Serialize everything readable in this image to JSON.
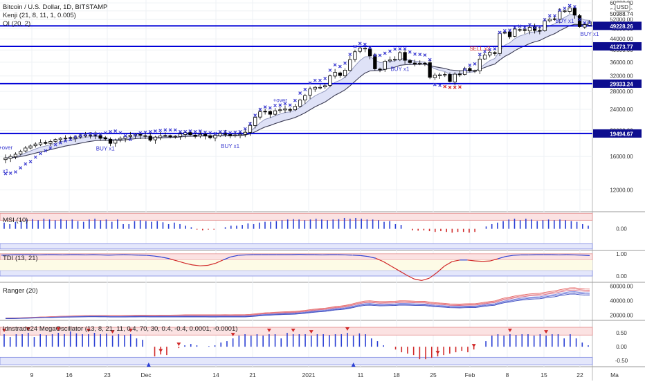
{
  "legend": {
    "symbol": "Bitcoin / U.S. Dollar, 1D, BITSTAMP",
    "kenji": "Kenji (21, 8, 11, 1, 0.005)",
    "oi": "OI (20, 2)"
  },
  "currency_badge": "USD",
  "colors": {
    "up_candle": "#ffffff",
    "down_candle": "#000000",
    "level_line": "#0000d8",
    "cross_blue": "#3b3bd0",
    "cross_red": "#d02828",
    "band_fill": "#dfe2f7",
    "price_tag": "#0d0d8f",
    "osc_blue": "#2a3fd4",
    "osc_red": "#d12a2a"
  },
  "chart_data": [
    {
      "id": "price",
      "type": "candlestick",
      "yticks": [
        12000,
        16000,
        20000,
        24000,
        28000,
        32000,
        36000,
        40000,
        44000,
        48000,
        52000,
        56000,
        60000
      ],
      "ylim": [
        10000,
        61500
      ],
      "levels": [
        {
          "value": 49228.26,
          "label": "49228.26"
        },
        {
          "value": 41273.77,
          "label": "41273.77"
        },
        {
          "value": 29933.24,
          "label": "29933.24"
        },
        {
          "value": 19494.67,
          "label": "19494.67"
        }
      ],
      "last_price_label": "50988.74",
      "close": [
        15800,
        16000,
        16300,
        16700,
        17200,
        17500,
        17800,
        18000,
        17900,
        18200,
        18500,
        18700,
        18750,
        18650,
        18900,
        19100,
        19250,
        19200,
        19100,
        18700,
        18600,
        17900,
        18400,
        18700,
        19000,
        19200,
        19350,
        19200,
        19050,
        18400,
        18900,
        19100,
        19150,
        18950,
        19050,
        19400,
        19650,
        19300,
        19000,
        19350,
        19100,
        18800,
        19200,
        19500,
        19350,
        19100,
        19250,
        19350,
        19700,
        20900,
        22400,
        23500,
        23600,
        23000,
        23700,
        23900,
        24100,
        23800,
        24600,
        26000,
        27000,
        28600,
        29000,
        29000,
        29400,
        32000,
        33000,
        32100,
        33600,
        36800,
        39400,
        40700,
        40600,
        38000,
        34000,
        33900,
        36300,
        36700,
        36900,
        39100,
        36600,
        35900,
        35500,
        35700,
        35700,
        31600,
        32200,
        32300,
        32400,
        30500,
        32500,
        32300,
        34000,
        33400,
        33500,
        37000,
        38300,
        39200,
        38800,
        46200,
        46500,
        44800,
        47900,
        47600,
        47300,
        48600,
        47300,
        47300,
        51400,
        52100,
        52000,
        55900,
        56000,
        57400,
        54000,
        48900,
        49700,
        50988.74
      ],
      "sar": [
        13800,
        13850,
        14000,
        14500,
        15000,
        15300,
        15900,
        16400,
        16800,
        17200,
        17700,
        18000,
        18300,
        18500,
        18900,
        19100,
        19300,
        19450,
        19400,
        19400,
        19600,
        19800,
        19900,
        19600,
        19100,
        18500,
        19300,
        19600,
        19700,
        19800,
        19900,
        20000,
        20100,
        20100,
        20100,
        19800,
        19800,
        19900,
        19800,
        19900,
        19700,
        19600,
        19500,
        19800,
        19800,
        19600,
        19700,
        19800,
        20300,
        21200,
        22800,
        24000,
        24500,
        24300,
        24800,
        24900,
        25200,
        24900,
        25900,
        27600,
        28500,
        30100,
        30800,
        30800,
        31300,
        33600,
        35200,
        34700,
        35700,
        38500,
        41200,
        42300,
        42000,
        40700,
        38200,
        38200,
        38900,
        39600,
        40300,
        40400,
        40400,
        39300,
        38600,
        38500,
        38300,
        36800,
        29700,
        29500,
        29200,
        29000,
        29000,
        29100,
        33800,
        35100,
        35500,
        38500,
        39500,
        40100,
        40400,
        46500,
        47200,
        47400,
        48600,
        49100,
        48600,
        49700,
        48500,
        48900,
        51900,
        53700,
        53700,
        56300,
        57300,
        58600,
        58000,
        52000,
        50500,
        50500
      ],
      "sar_red_from": 88,
      "sar_red_to": 91,
      "annotations": [
        {
          "i": 0,
          "text": "+over",
          "pos": "above",
          "offset": 7,
          "color": "#3b3bd0"
        },
        {
          "i": 0,
          "text": "x1",
          "pos": "below",
          "offset": 14,
          "color": "#3b3bd0"
        },
        {
          "i": 20,
          "text": "BUY x1",
          "pos": "below",
          "offset": 14,
          "color": "#3b3bd0"
        },
        {
          "i": 45,
          "text": "BUY x1",
          "pos": "below",
          "offset": 14,
          "color": "#3b3bd0"
        },
        {
          "i": 55,
          "text": "+over",
          "pos": "above",
          "offset": 7,
          "color": "#3b3bd0"
        },
        {
          "i": 79,
          "text": "BUY x1",
          "pos": "below",
          "offset": 14,
          "color": "#3b3bd0"
        },
        {
          "i": 95,
          "text": "SELL x2",
          "pos": "above",
          "offset": 7,
          "color": "#d02828"
        },
        {
          "i": 112,
          "text": "BUY x1",
          "pos": "below",
          "offset": 14,
          "color": "#3b3bd0"
        },
        {
          "i": 145,
          "text": "BUY x1",
          "pos": "below",
          "offset": 14,
          "color": "#3b3bd0"
        }
      ]
    },
    {
      "id": "msi",
      "type": "bar",
      "title": "MSI (10)",
      "yticks": [
        0
      ],
      "ytick_labels": [
        "0.00"
      ],
      "ylim": [
        -1.35,
        1.1
      ],
      "upper_band": [
        0.55,
        1.0
      ],
      "lower_band": [
        -1.3,
        -0.95
      ],
      "values": [
        0.4,
        0.3,
        0.45,
        0.5,
        0.6,
        0.62,
        0.55,
        0.65,
        0.6,
        0.55,
        0.62,
        0.55,
        0.6,
        0.5,
        0.45,
        0.6,
        0.65,
        0.55,
        0.6,
        0.45,
        0.6,
        0.3,
        0.3,
        0.5,
        0.55,
        0.5,
        0.45,
        0.5,
        0.42,
        0.3,
        0.4,
        0.3,
        0.2,
        0.1,
        -0.05,
        -0.1,
        -0.05,
        -0.05,
        0.0,
        0.1,
        0.2,
        0.2,
        0.25,
        0.35,
        0.3,
        0.4,
        0.45,
        0.45,
        0.5,
        0.55,
        0.6,
        0.62,
        0.6,
        0.55,
        0.6,
        0.65,
        0.6,
        0.55,
        0.6,
        0.62,
        0.7,
        0.65,
        0.7,
        0.65,
        0.6,
        0.6,
        0.55,
        0.45,
        0.5,
        0.3,
        0.25,
        0.0,
        -0.1,
        -0.12,
        -0.1,
        -0.15,
        -0.2,
        -0.15,
        -0.2,
        -0.25,
        -0.2,
        -0.2,
        -0.25,
        -0.2,
        0.0,
        0.15,
        0.3,
        0.4,
        0.5,
        0.6,
        0.65,
        0.55,
        0.65,
        0.6,
        0.5,
        0.55,
        0.6,
        0.55,
        0.6,
        0.55,
        0.5,
        0.45,
        0.3,
        0.2
      ],
      "red_below": 0
    },
    {
      "id": "tdi",
      "type": "line",
      "title": "TDI (13, 21)",
      "yticks": [
        1,
        0
      ],
      "ytick_labels": [
        "1.00",
        "0.00"
      ],
      "ylim": [
        -0.25,
        1.15
      ],
      "upper_band": [
        0.72,
        1.0
      ],
      "lower_band": [
        0.0,
        0.25
      ],
      "values": [
        0.94,
        0.95,
        0.96,
        0.96,
        0.96,
        0.95,
        0.96,
        0.96,
        0.95,
        0.96,
        0.96,
        0.95,
        0.96,
        0.95,
        0.94,
        0.95,
        0.96,
        0.95,
        0.94,
        0.93,
        0.9,
        0.85,
        0.78,
        0.68,
        0.58,
        0.5,
        0.46,
        0.48,
        0.57,
        0.72,
        0.86,
        0.93,
        0.95,
        0.96,
        0.96,
        0.96,
        0.96,
        0.96,
        0.96,
        0.97,
        0.96,
        0.96,
        0.95,
        0.96,
        0.96,
        0.95,
        0.94,
        0.92,
        0.88,
        0.8,
        0.65,
        0.45,
        0.25,
        0.05,
        -0.13,
        -0.2,
        -0.1,
        0.15,
        0.45,
        0.65,
        0.72,
        0.72,
        0.68,
        0.66,
        0.68,
        0.78,
        0.88,
        0.93,
        0.95,
        0.95,
        0.96,
        0.96,
        0.96,
        0.95,
        0.96,
        0.95,
        0.94,
        0.92
      ],
      "red_below": 0.72,
      "zero_marker": 0.72
    },
    {
      "id": "ranger",
      "type": "line",
      "title": "Ranger (20)",
      "yticks": [
        20000,
        40000,
        60000
      ],
      "ytick_labels": [
        "20000.00",
        "40000.00",
        "60000.00"
      ],
      "ylim": [
        14000,
        65000
      ]
    },
    {
      "id": "mega",
      "type": "bar",
      "title": "Idnstrade24 MegaOscillator (13, 8, 21, 11, 0.4, 70, 30, 0.4, -0.4, 0.0001, -0.0001)",
      "yticks": [
        0.5,
        0,
        -0.5
      ],
      "ytick_labels": [
        "0.50",
        "0.00",
        "-0.50"
      ],
      "ylim": [
        -0.72,
        0.95
      ],
      "upper_band": [
        0.42,
        0.7
      ],
      "lower_band": [
        -0.65,
        -0.38
      ],
      "values": [
        0.45,
        0.35,
        0.45,
        0.45,
        0.5,
        0.35,
        0.45,
        0.42,
        0.45,
        0.5,
        0.45,
        0.55,
        0.48,
        0.45,
        0.45,
        0.5,
        0.45,
        0.47,
        0.4,
        0.45,
        0.42,
        0.45,
        0.3,
        0.25,
        0.0,
        -0.35,
        -0.28,
        -0.3,
        0.0,
        -0.05,
        0.05,
        0.1,
        0.05,
        0.0,
        0.02,
        0.05,
        0.15,
        0.2,
        0.3,
        0.4,
        0.45,
        0.4,
        0.45,
        0.4,
        0.45,
        0.45,
        0.3,
        0.5,
        0.45,
        0.45,
        0.45,
        0.4,
        0.45,
        0.45,
        0.42,
        0.45,
        0.45,
        0.5,
        0.4,
        0.48,
        0.45,
        0.3,
        0.2,
        0.05,
        0.0,
        -0.1,
        -0.2,
        -0.25,
        -0.3,
        -0.45,
        -0.45,
        -0.4,
        -0.35,
        -0.3,
        -0.25,
        -0.2,
        -0.15,
        -0.2,
        -0.1,
        0.0,
        0.2,
        0.4,
        0.45,
        0.4,
        0.45,
        0.42,
        0.45,
        0.45,
        0.4,
        0.45,
        0.4,
        0.45,
        0.45,
        0.3,
        0.45,
        0.3,
        0.15,
        0.05
      ],
      "red_below": 0,
      "down_arrows": [
        0,
        4,
        9,
        14,
        18,
        21,
        26,
        29,
        38,
        44,
        48,
        51,
        57,
        72,
        78,
        84,
        90
      ],
      "up_arrows": [
        24,
        58
      ]
    }
  ],
  "xaxis": {
    "ticks": [
      {
        "label": "9",
        "x": 46
      },
      {
        "label": "16",
        "x": 100
      },
      {
        "label": "23",
        "x": 155
      },
      {
        "label": "Dec",
        "x": 211
      },
      {
        "label": "14",
        "x": 312
      },
      {
        "label": "21",
        "x": 365
      },
      {
        "label": "2021",
        "x": 446
      },
      {
        "label": "11",
        "x": 521
      },
      {
        "label": "18",
        "x": 573
      },
      {
        "label": "25",
        "x": 626
      },
      {
        "label": "Feb",
        "x": 679
      },
      {
        "label": "8",
        "x": 733
      },
      {
        "label": "15",
        "x": 786
      },
      {
        "label": "22",
        "x": 838
      },
      {
        "label": "Ma",
        "x": 888
      }
    ]
  }
}
